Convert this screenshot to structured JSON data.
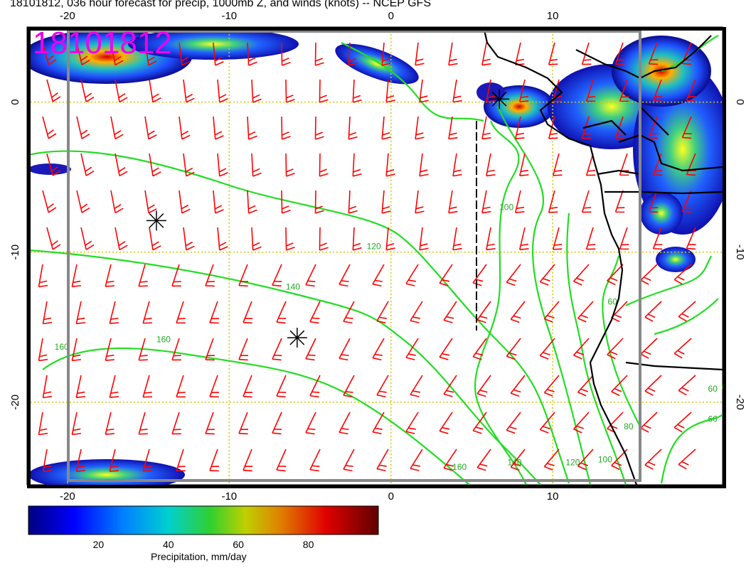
{
  "title": "18101812, 036 hour forecast for precip, 1000mb Z, and winds (knots) -- NCEP GFS",
  "date_stamp": "18101812",
  "map": {
    "lon_range": [
      -22.5,
      20.5
    ],
    "lat_range": [
      -25.5,
      5
    ],
    "lon_ticks": [
      -20,
      -10,
      0,
      10
    ],
    "lat_ticks": [
      0,
      -10,
      -20
    ],
    "grid_lines": "dotted-yellow",
    "contour_color": "#22dd22",
    "barb_color": "#ff0000",
    "coast_color": "#000000",
    "contour_labels": [
      {
        "text": "160",
        "lon": -20.8,
        "lat": -16.5
      },
      {
        "text": "160",
        "lon": -14.5,
        "lat": -16.0
      },
      {
        "text": "140",
        "lon": -6.5,
        "lat": -12.5
      },
      {
        "text": "120",
        "lon": -1.5,
        "lat": -9.8
      },
      {
        "text": "100",
        "lon": 6.7,
        "lat": -7.2
      },
      {
        "text": "160",
        "lon": 3.8,
        "lat": -24.5
      },
      {
        "text": "140",
        "lon": 7.2,
        "lat": -24.2
      },
      {
        "text": "120",
        "lon": 10.8,
        "lat": -24.2
      },
      {
        "text": "100",
        "lon": 12.8,
        "lat": -24.0
      },
      {
        "text": "80",
        "lon": 14.4,
        "lat": -21.8
      },
      {
        "text": "60",
        "lon": 13.4,
        "lat": -13.5
      },
      {
        "text": "60",
        "lon": 19.6,
        "lat": -21.3
      },
      {
        "text": "60",
        "lon": 19.6,
        "lat": -19.3
      }
    ],
    "highs_lows_markers": [
      {
        "symbol": "asterisk",
        "lon": -14.5,
        "lat": -7.9
      },
      {
        "symbol": "asterisk",
        "lon": -5.8,
        "lat": -15.7
      },
      {
        "symbol": "asterisk",
        "lon": 6.7,
        "lat": 0.2
      }
    ]
  },
  "colorbar": {
    "label": "Precipitation, mm/day",
    "ticks": [
      "20",
      "40",
      "60",
      "80"
    ],
    "tick_values": [
      20,
      40,
      60,
      80
    ],
    "range": [
      0,
      100
    ],
    "colors": [
      "#000080",
      "#0000ff",
      "#0080ff",
      "#00d0d0",
      "#30d030",
      "#c0d000",
      "#e08000",
      "#e00000",
      "#600000"
    ]
  }
}
